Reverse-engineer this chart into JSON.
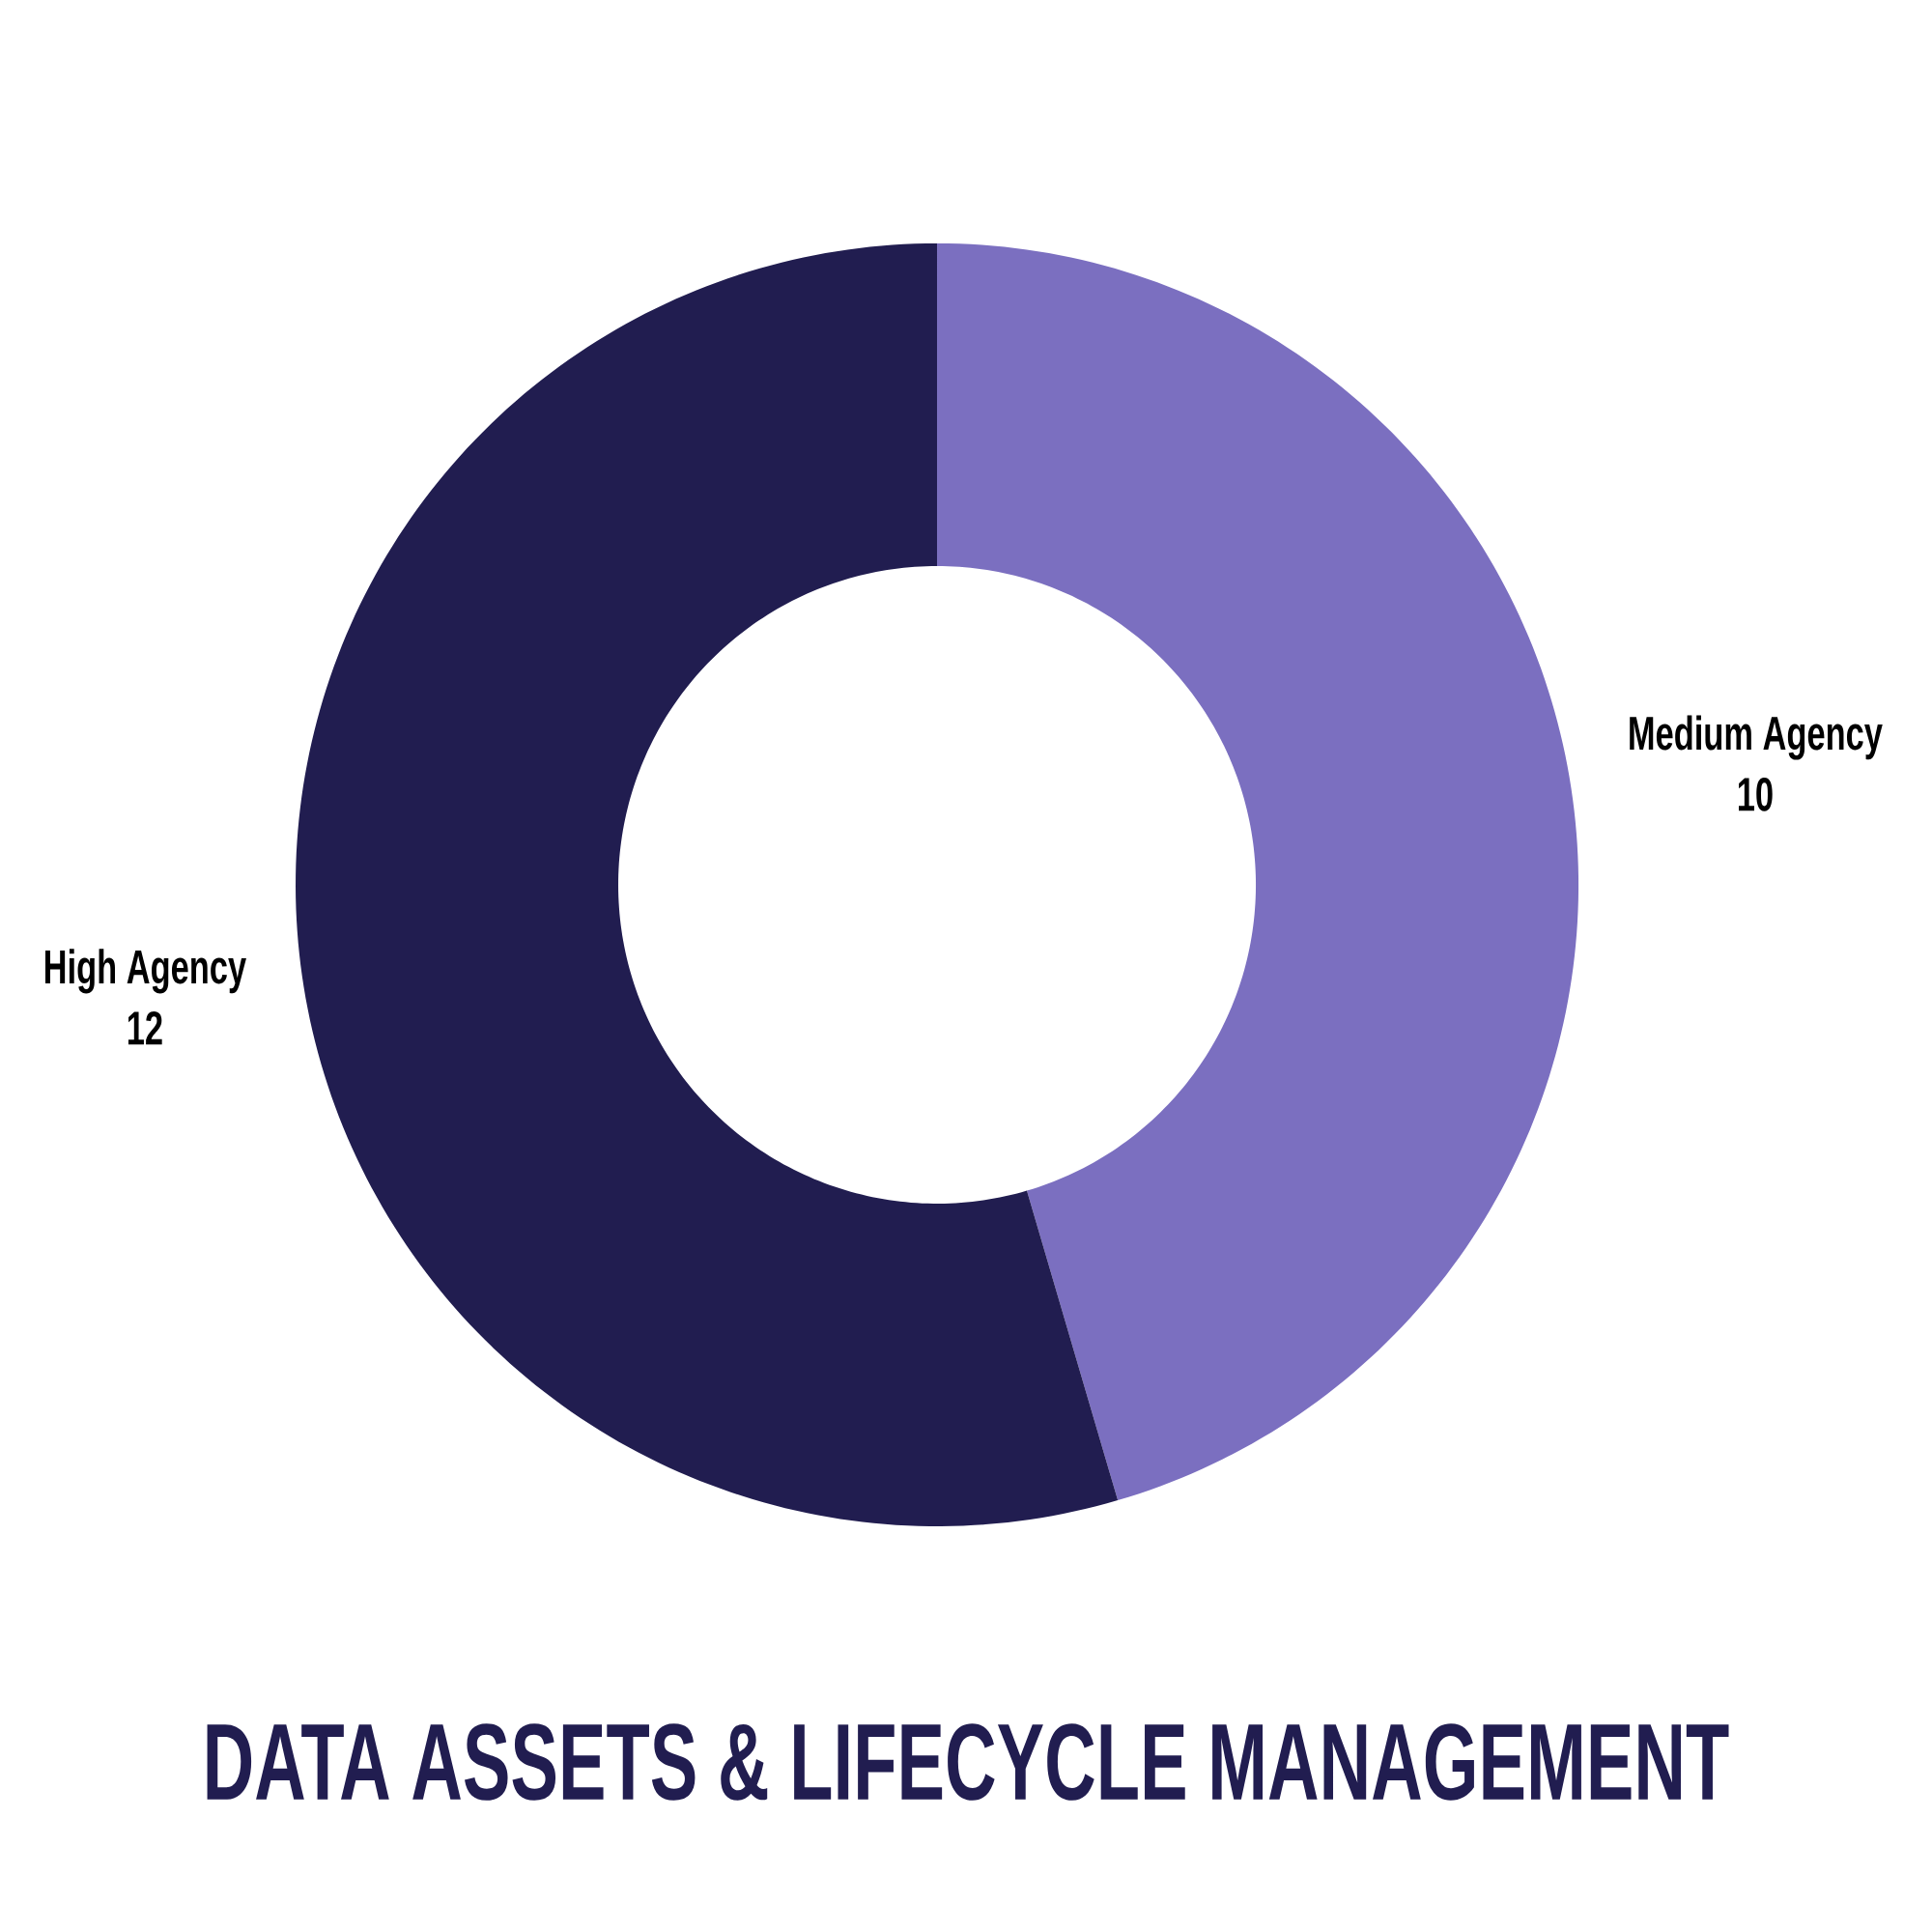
{
  "chart_data": {
    "type": "donut",
    "title": "DATA ASSETS & LIFECYCLE MANAGEMENT",
    "categories": [
      "Medium Agency",
      "High Agency"
    ],
    "values": [
      10,
      12
    ],
    "colors": [
      "#7b6fc0",
      "#211d50"
    ],
    "data_labels": true
  }
}
